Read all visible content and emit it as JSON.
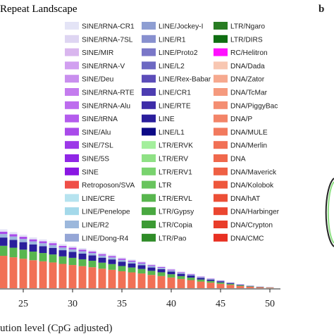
{
  "chart_data": {
    "type": "bar",
    "title": "Repeat Landscape",
    "panel_label": "b",
    "xlabel": "ution level (CpG adjusted)",
    "x_ticks": [
      25,
      30,
      35,
      40,
      45,
      50
    ],
    "xlim": [
      20.5,
      51.5
    ],
    "stacked": true,
    "legend_placement": "top",
    "legend": [
      {
        "label": "SINE/tRNA-CR1",
        "color": "#e4e4f6"
      },
      {
        "label": "SINE/tRNA-7SL",
        "color": "#ded5f2"
      },
      {
        "label": "SINE/MIR",
        "color": "#d9b6ee"
      },
      {
        "label": "SINE/tRNA-V",
        "color": "#d19ff0"
      },
      {
        "label": "SINE/Deu",
        "color": "#c98fee"
      },
      {
        "label": "SINE/tRNA-RTE",
        "color": "#c47cee"
      },
      {
        "label": "SINE/tRNA-Alu",
        "color": "#bd6cee"
      },
      {
        "label": "SINE/tRNA",
        "color": "#b45ced"
      },
      {
        "label": "SINE/Alu",
        "color": "#a94bea"
      },
      {
        "label": "SINE/7SL",
        "color": "#9c38e8"
      },
      {
        "label": "SINE/5S",
        "color": "#9027e6"
      },
      {
        "label": "SINE",
        "color": "#8a17e3"
      },
      {
        "label": "Retroposon/SVA",
        "color": "#ef4f48"
      },
      {
        "label": "LINE/CRE",
        "color": "#b6e3ef"
      },
      {
        "label": "LINE/Penelope",
        "color": "#a4d9ea"
      },
      {
        "label": "LINE/R2",
        "color": "#9cb8dc"
      },
      {
        "label": "LINE/Dong-R4",
        "color": "#95a6d6"
      },
      {
        "label": "LINE/Jockey-I",
        "color": "#8e9ed2"
      },
      {
        "label": "LINE/R1",
        "color": "#8890cf"
      },
      {
        "label": "LINE/Proto2",
        "color": "#7a77c8"
      },
      {
        "label": "LINE/L2",
        "color": "#6c68c2"
      },
      {
        "label": "LINE/Rex-Babar",
        "color": "#5c4db9"
      },
      {
        "label": "LINE/CR1",
        "color": "#4d3db1"
      },
      {
        "label": "LINE/RTE",
        "color": "#3d2ca8"
      },
      {
        "label": "LINE",
        "color": "#2a1e9c"
      },
      {
        "label": "LINE/L1",
        "color": "#0c0a86"
      },
      {
        "label": "LTR/ERVK",
        "color": "#a3ef9c"
      },
      {
        "label": "LTR/ERV",
        "color": "#8fe185"
      },
      {
        "label": "LTR/ERV1",
        "color": "#79d36e"
      },
      {
        "label": "LTR",
        "color": "#68c45d"
      },
      {
        "label": "LTR/ERVL",
        "color": "#58b64e"
      },
      {
        "label": "LTR/Gypsy",
        "color": "#49a840"
      },
      {
        "label": "LTR/Copia",
        "color": "#3b9a33"
      },
      {
        "label": "LTR/Pao",
        "color": "#2f8c28"
      },
      {
        "label": "LTR/Ngaro",
        "color": "#287c22"
      },
      {
        "label": "LTR/DIRS",
        "color": "#0f6e12"
      },
      {
        "label": "RC/Helitron",
        "color": "#ff10ff"
      },
      {
        "label": "DNA/Dada",
        "color": "#f8c7b2"
      },
      {
        "label": "DNA/Zator",
        "color": "#f6a98f"
      },
      {
        "label": "DNA/TcMar",
        "color": "#f59a7e"
      },
      {
        "label": "DNA/PiggyBac",
        "color": "#f48e72"
      },
      {
        "label": "DNA/P",
        "color": "#f38468"
      },
      {
        "label": "DNA/MULE",
        "color": "#f27a5e"
      },
      {
        "label": "DNA/Merlin",
        "color": "#f17055"
      },
      {
        "label": "DNA",
        "color": "#f0684c"
      },
      {
        "label": "DNA/Maverick",
        "color": "#ef6044"
      },
      {
        "label": "DNA/Kolobok",
        "color": "#ee573c"
      },
      {
        "label": "DNA/hAT",
        "color": "#ec4f36"
      },
      {
        "label": "DNA/Harbinger",
        "color": "#eb4630"
      },
      {
        "label": "DNA/Crypton",
        "color": "#e93d2a"
      },
      {
        "label": "DNA/CMC",
        "color": "#e83022"
      }
    ],
    "bar_x": [
      20,
      21,
      22,
      23,
      24,
      25,
      26,
      27,
      28,
      29,
      30,
      31,
      32,
      33,
      34,
      35,
      36,
      37,
      38,
      39,
      40,
      41,
      42,
      43,
      44,
      45,
      46,
      47,
      48,
      49,
      50
    ],
    "totals": [
      100,
      96,
      92,
      88,
      84,
      80,
      76,
      73,
      70,
      66,
      63,
      60,
      57,
      53,
      50,
      46,
      43,
      40,
      36,
      33,
      29,
      25,
      22,
      18,
      15,
      12,
      9,
      6,
      4,
      2.5,
      1.5
    ],
    "group_colors": {
      "dna": "#f17055",
      "ltr": "#58b64e",
      "line": "#2a1e9c",
      "line_light": "#9cb8dc",
      "sine": "#a94bea",
      "sine_light": "#e4e4f6"
    },
    "group_fractions": {
      "dna": 0.55,
      "ltr": 0.17,
      "line": 0.14,
      "line_light": 0.06,
      "sine": 0.04,
      "sine_light": 0.04
    }
  }
}
